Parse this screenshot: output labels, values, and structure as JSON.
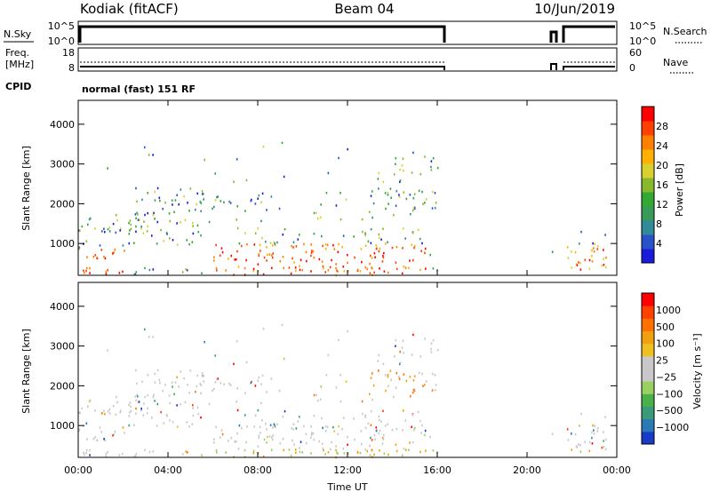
{
  "header": {
    "station": "Kodiak (fitACF)",
    "beam": "Beam 04",
    "date": "10/Jun/2019"
  },
  "status_panels": {
    "nsky_label": "N.Sky",
    "nsky_ticks": [
      "10^5",
      "10^0"
    ],
    "nsearch_label": "N.Search",
    "nsearch_ticks": [
      "10^5",
      "10^0"
    ],
    "freq_label_line1": "Freq.",
    "freq_label_line2": "[MHz]",
    "freq_ticks": [
      "18",
      "8"
    ],
    "nave_label": "Nave",
    "nave_ticks": [
      "60",
      "0"
    ],
    "cpid_label": "CPID",
    "cpid_text": "normal (fast) 151 RF"
  },
  "chart_data": [
    {
      "type": "heatmap",
      "parameter": "power",
      "ylabel": "Slant Range [km]",
      "xlabel": "",
      "yticks": [
        "4000",
        "3000",
        "2000",
        "1000"
      ],
      "ylim": [
        200,
        4600
      ],
      "xlim_hours": [
        0,
        24
      ],
      "colorbar_label": "Power [dB]",
      "colorbar_ticks": [
        "28",
        "24",
        "20",
        "16",
        "12",
        "8",
        "4"
      ],
      "colorbar_colors": [
        "#1a1adc",
        "#2952c8",
        "#2f8a9a",
        "#3a9a5a",
        "#33a833",
        "#8ab82c",
        "#d8d030",
        "#ffb000",
        "#ff8000",
        "#ff4000",
        "#ff0000"
      ]
    },
    {
      "type": "heatmap",
      "parameter": "velocity",
      "ylabel": "Slant Range [km]",
      "xlabel": "Time UT",
      "yticks": [
        "4000",
        "3000",
        "2000",
        "1000"
      ],
      "xticks": [
        "00:00",
        "04:00",
        "08:00",
        "12:00",
        "16:00",
        "20:00",
        "00:00"
      ],
      "ylim": [
        200,
        4600
      ],
      "xlim_hours": [
        0,
        24
      ],
      "colorbar_label": "Velocity [m s⁻¹]",
      "colorbar_ticks": [
        "1000",
        "500",
        "100",
        "25",
        "−25",
        "−100",
        "−500",
        "−1000"
      ],
      "colorbar_colors": [
        "#1a3ac8",
        "#2a7ab8",
        "#3a9a7a",
        "#4ab04a",
        "#9ad060",
        "#c8c8c8",
        "#c8c8c8",
        "#f0c020",
        "#f0a010",
        "#ff7000",
        "#ff4000",
        "#ff0000"
      ]
    }
  ]
}
